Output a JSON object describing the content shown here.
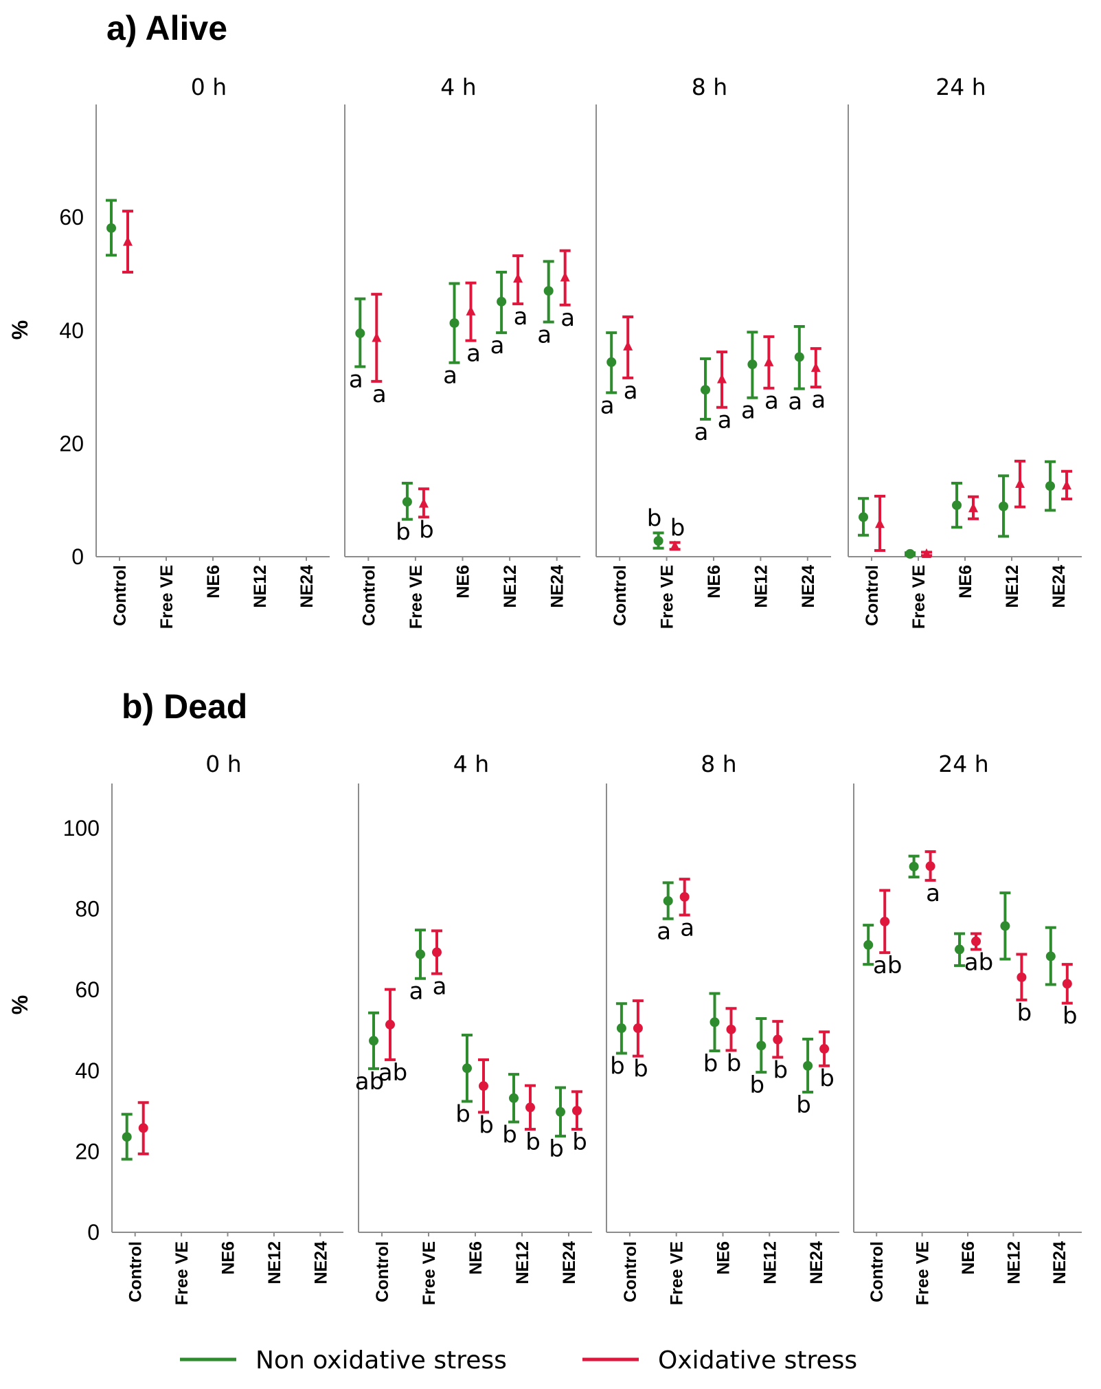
{
  "legend": [
    {
      "label": "Non oxidative stress",
      "color": "#2e8b2e"
    },
    {
      "label": "Oxidative stress",
      "color": "#e0173d"
    }
  ],
  "chart_data": [
    {
      "type": "errorbar",
      "title": "a) Alive",
      "ylabel": "%",
      "ylim": [
        0,
        80
      ],
      "yticks": [
        0,
        20,
        40,
        60
      ],
      "categories": [
        "Control",
        "Free VE",
        "NE6",
        "NE12",
        "NE24"
      ],
      "facets": [
        {
          "label": "0 h",
          "series": [
            {
              "name": "Non oxidative stress",
              "marker": "circle",
              "points": [
                {
                  "x": "Control",
                  "y": 58.1,
                  "lo": 53.3,
                  "hi": 63.0,
                  "sig": ""
                }
              ]
            },
            {
              "name": "Oxidative stress",
              "marker": "triangle",
              "points": [
                {
                  "x": "Control",
                  "y": 55.7,
                  "lo": 50.3,
                  "hi": 61.1,
                  "sig": ""
                }
              ]
            }
          ]
        },
        {
          "label": "4 h",
          "series": [
            {
              "name": "Non oxidative stress",
              "marker": "circle",
              "points": [
                {
                  "x": "Control",
                  "y": 39.5,
                  "lo": 33.6,
                  "hi": 45.6,
                  "sig": "a"
                },
                {
                  "x": "Free VE",
                  "y": 9.7,
                  "lo": 6.6,
                  "hi": 13.0,
                  "sig": "b"
                },
                {
                  "x": "NE6",
                  "y": 41.3,
                  "lo": 34.3,
                  "hi": 48.3,
                  "sig": "a"
                },
                {
                  "x": "NE12",
                  "y": 45.1,
                  "lo": 39.6,
                  "hi": 50.3,
                  "sig": "a"
                },
                {
                  "x": "NE24",
                  "y": 47.0,
                  "lo": 41.5,
                  "hi": 52.2,
                  "sig": "a"
                }
              ]
            },
            {
              "name": "Oxidative stress",
              "marker": "triangle",
              "points": [
                {
                  "x": "Control",
                  "y": 38.7,
                  "lo": 31.0,
                  "hi": 46.4,
                  "sig": "a"
                },
                {
                  "x": "Free VE",
                  "y": 9.4,
                  "lo": 7.0,
                  "hi": 12.0,
                  "sig": "b"
                },
                {
                  "x": "NE6",
                  "y": 43.4,
                  "lo": 38.2,
                  "hi": 48.4,
                  "sig": "a"
                },
                {
                  "x": "NE12",
                  "y": 49.2,
                  "lo": 44.7,
                  "hi": 53.2,
                  "sig": "a"
                },
                {
                  "x": "NE24",
                  "y": 49.4,
                  "lo": 44.5,
                  "hi": 54.1,
                  "sig": "a"
                }
              ]
            }
          ]
        },
        {
          "label": "8 h",
          "series": [
            {
              "name": "Non oxidative stress",
              "marker": "circle",
              "points": [
                {
                  "x": "Control",
                  "y": 34.4,
                  "lo": 29.0,
                  "hi": 39.6,
                  "sig": "a"
                },
                {
                  "x": "Free VE",
                  "y": 2.8,
                  "lo": 1.5,
                  "hi": 4.2,
                  "sig": "b"
                },
                {
                  "x": "NE6",
                  "y": 29.5,
                  "lo": 24.3,
                  "hi": 35.0,
                  "sig": "a"
                },
                {
                  "x": "NE12",
                  "y": 34.0,
                  "lo": 28.1,
                  "hi": 39.7,
                  "sig": "a"
                },
                {
                  "x": "NE24",
                  "y": 35.3,
                  "lo": 29.7,
                  "hi": 40.7,
                  "sig": "a"
                }
              ]
            },
            {
              "name": "Oxidative stress",
              "marker": "triangle",
              "points": [
                {
                  "x": "Control",
                  "y": 37.2,
                  "lo": 31.6,
                  "hi": 42.4,
                  "sig": "a"
                },
                {
                  "x": "Free VE",
                  "y": 1.9,
                  "lo": 1.3,
                  "hi": 2.5,
                  "sig": "b"
                },
                {
                  "x": "NE6",
                  "y": 31.4,
                  "lo": 26.4,
                  "hi": 36.2,
                  "sig": "a"
                },
                {
                  "x": "NE12",
                  "y": 34.4,
                  "lo": 29.8,
                  "hi": 38.9,
                  "sig": "a"
                },
                {
                  "x": "NE24",
                  "y": 33.4,
                  "lo": 30.0,
                  "hi": 36.8,
                  "sig": "a"
                }
              ]
            }
          ]
        },
        {
          "label": "24 h",
          "series": [
            {
              "name": "Non oxidative stress",
              "marker": "circle",
              "points": [
                {
                  "x": "Control",
                  "y": 7.0,
                  "lo": 3.8,
                  "hi": 10.3,
                  "sig": ""
                },
                {
                  "x": "Free VE",
                  "y": 0.5,
                  "lo": 0.3,
                  "hi": 0.7,
                  "sig": ""
                },
                {
                  "x": "NE6",
                  "y": 9.1,
                  "lo": 5.2,
                  "hi": 13.0,
                  "sig": ""
                },
                {
                  "x": "NE12",
                  "y": 8.9,
                  "lo": 3.6,
                  "hi": 14.3,
                  "sig": ""
                },
                {
                  "x": "NE24",
                  "y": 12.5,
                  "lo": 8.2,
                  "hi": 16.8,
                  "sig": ""
                }
              ]
            },
            {
              "name": "Oxidative stress",
              "marker": "triangle",
              "points": [
                {
                  "x": "Control",
                  "y": 5.8,
                  "lo": 1.1,
                  "hi": 10.7,
                  "sig": ""
                },
                {
                  "x": "Free VE",
                  "y": 0.5,
                  "lo": 0.2,
                  "hi": 0.8,
                  "sig": ""
                },
                {
                  "x": "NE6",
                  "y": 8.6,
                  "lo": 6.7,
                  "hi": 10.6,
                  "sig": ""
                },
                {
                  "x": "NE12",
                  "y": 12.9,
                  "lo": 8.8,
                  "hi": 16.9,
                  "sig": ""
                },
                {
                  "x": "NE24",
                  "y": 12.6,
                  "lo": 10.2,
                  "hi": 15.1,
                  "sig": ""
                }
              ]
            }
          ]
        }
      ]
    },
    {
      "type": "errorbar",
      "title": "b) Dead",
      "ylabel": "%",
      "ylim": [
        0,
        111
      ],
      "yticks": [
        0,
        20,
        40,
        60,
        80,
        100
      ],
      "categories": [
        "Control",
        "Free VE",
        "NE6",
        "NE12",
        "NE24"
      ],
      "facets": [
        {
          "label": "0 h",
          "series": [
            {
              "name": "Non oxidative stress",
              "marker": "circle",
              "points": [
                {
                  "x": "Control",
                  "y": 23.6,
                  "lo": 18.1,
                  "hi": 29.2,
                  "sig": ""
                }
              ]
            },
            {
              "name": "Oxidative stress",
              "marker": "circle",
              "points": [
                {
                  "x": "Control",
                  "y": 25.8,
                  "lo": 19.4,
                  "hi": 32.1,
                  "sig": ""
                }
              ]
            }
          ]
        },
        {
          "label": "4 h",
          "series": [
            {
              "name": "Non oxidative stress",
              "marker": "circle",
              "points": [
                {
                  "x": "Control",
                  "y": 47.4,
                  "lo": 40.5,
                  "hi": 54.3,
                  "sig": "ab"
                },
                {
                  "x": "Free VE",
                  "y": 68.8,
                  "lo": 62.8,
                  "hi": 74.8,
                  "sig": "a"
                },
                {
                  "x": "NE6",
                  "y": 40.6,
                  "lo": 32.4,
                  "hi": 48.8,
                  "sig": "b"
                },
                {
                  "x": "NE12",
                  "y": 33.2,
                  "lo": 27.3,
                  "hi": 39.1,
                  "sig": "b"
                },
                {
                  "x": "NE24",
                  "y": 29.8,
                  "lo": 23.8,
                  "hi": 35.8,
                  "sig": "b"
                }
              ]
            },
            {
              "name": "Oxidative stress",
              "marker": "circle",
              "points": [
                {
                  "x": "Control",
                  "y": 51.4,
                  "lo": 42.7,
                  "hi": 60.1,
                  "sig": "ab"
                },
                {
                  "x": "Free VE",
                  "y": 69.3,
                  "lo": 64.0,
                  "hi": 74.6,
                  "sig": "a"
                },
                {
                  "x": "NE6",
                  "y": 36.2,
                  "lo": 29.7,
                  "hi": 42.7,
                  "sig": "b"
                },
                {
                  "x": "NE12",
                  "y": 30.9,
                  "lo": 25.5,
                  "hi": 36.3,
                  "sig": "b"
                },
                {
                  "x": "NE24",
                  "y": 30.1,
                  "lo": 25.5,
                  "hi": 34.8,
                  "sig": "b"
                }
              ]
            }
          ]
        },
        {
          "label": "8 h",
          "series": [
            {
              "name": "Non oxidative stress",
              "marker": "circle",
              "points": [
                {
                  "x": "Control",
                  "y": 50.5,
                  "lo": 44.3,
                  "hi": 56.6,
                  "sig": "b"
                },
                {
                  "x": "Free VE",
                  "y": 82.0,
                  "lo": 77.6,
                  "hi": 86.5,
                  "sig": "a"
                },
                {
                  "x": "NE6",
                  "y": 52.0,
                  "lo": 44.9,
                  "hi": 59.1,
                  "sig": "b"
                },
                {
                  "x": "NE12",
                  "y": 46.2,
                  "lo": 39.6,
                  "hi": 52.9,
                  "sig": "b"
                },
                {
                  "x": "NE24",
                  "y": 41.2,
                  "lo": 34.7,
                  "hi": 47.8,
                  "sig": "b"
                }
              ]
            },
            {
              "name": "Oxidative stress",
              "marker": "circle",
              "points": [
                {
                  "x": "Control",
                  "y": 50.5,
                  "lo": 43.6,
                  "hi": 57.3,
                  "sig": "b"
                },
                {
                  "x": "Free VE",
                  "y": 83.0,
                  "lo": 78.5,
                  "hi": 87.4,
                  "sig": "a"
                },
                {
                  "x": "NE6",
                  "y": 50.2,
                  "lo": 45.0,
                  "hi": 55.4,
                  "sig": "b"
                },
                {
                  "x": "NE12",
                  "y": 47.7,
                  "lo": 43.3,
                  "hi": 52.2,
                  "sig": "b"
                },
                {
                  "x": "NE24",
                  "y": 45.4,
                  "lo": 41.2,
                  "hi": 49.6,
                  "sig": "b"
                }
              ]
            }
          ]
        },
        {
          "label": "24 h",
          "series": [
            {
              "name": "Non oxidative stress",
              "marker": "circle",
              "points": [
                {
                  "x": "Control",
                  "y": 71.1,
                  "lo": 66.3,
                  "hi": 76.0,
                  "sig": ""
                },
                {
                  "x": "Free VE",
                  "y": 90.5,
                  "lo": 87.9,
                  "hi": 93.1,
                  "sig": ""
                },
                {
                  "x": "NE6",
                  "y": 70.0,
                  "lo": 66.0,
                  "hi": 73.9,
                  "sig": ""
                },
                {
                  "x": "NE12",
                  "y": 75.8,
                  "lo": 67.6,
                  "hi": 84.0,
                  "sig": ""
                },
                {
                  "x": "NE24",
                  "y": 68.3,
                  "lo": 61.3,
                  "hi": 75.4,
                  "sig": ""
                }
              ]
            },
            {
              "name": "Oxidative stress",
              "marker": "circle",
              "points": [
                {
                  "x": "Control",
                  "y": 76.9,
                  "lo": 69.2,
                  "hi": 84.6,
                  "sig": "ab"
                },
                {
                  "x": "Free VE",
                  "y": 90.6,
                  "lo": 87.1,
                  "hi": 94.2,
                  "sig": "a"
                },
                {
                  "x": "NE6",
                  "y": 72.0,
                  "lo": 70.0,
                  "hi": 73.9,
                  "sig": "ab"
                },
                {
                  "x": "NE12",
                  "y": 63.1,
                  "lo": 57.5,
                  "hi": 68.8,
                  "sig": "b"
                },
                {
                  "x": "NE24",
                  "y": 61.5,
                  "lo": 56.7,
                  "hi": 66.3,
                  "sig": "b"
                }
              ]
            }
          ]
        }
      ]
    }
  ]
}
